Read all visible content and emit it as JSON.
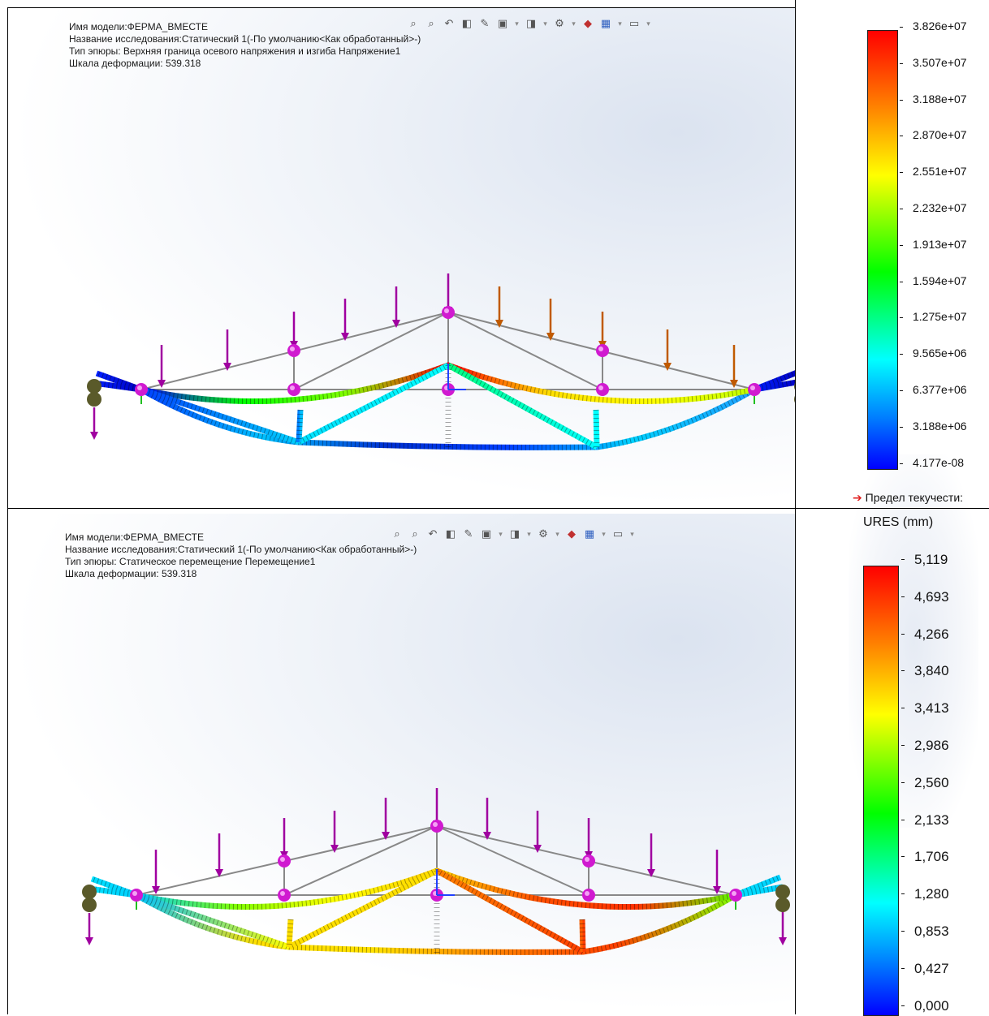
{
  "panels": [
    {
      "info": {
        "model_name": "Имя модели:ФЕРМА_ВМЕСТЕ",
        "study_name": "Название исследования:Статический 1(-По умолчанию<Как обработанный>-)",
        "plot_type": "Тип эпюры: Верхняя граница осевого напряжения и изгиба Напряжение1",
        "deformation_scale": "Шкала деформации: 539.318"
      }
    },
    {
      "info": {
        "model_name": "Имя модели:ФЕРМА_ВМЕСТЕ",
        "study_name": "Название исследования:Статический 1(-По умолчанию<Как обработанный>-)",
        "plot_type": "Тип эпюры: Статическое перемещение Перемещение1",
        "deformation_scale": "Шкала деформации: 539.318"
      }
    }
  ],
  "toolbar_icons": [
    "zoom-to-fit-icon",
    "zoom-to-area-icon",
    "previous-view-icon",
    "section-view-icon",
    "view-orientation-icon",
    "display-style-icon",
    "hide-show-icon",
    "edit-appearance-icon",
    "apply-scene-icon",
    "view-settings-icon"
  ],
  "legend_stress": {
    "values": [
      "3.826e+07",
      "3.507e+07",
      "3.188e+07",
      "2.870e+07",
      "2.551e+07",
      "2.232e+07",
      "1.913e+07",
      "1.594e+07",
      "1.275e+07",
      "9.565e+06",
      "6.377e+06",
      "3.188e+06",
      "4.177e-08"
    ],
    "yield_label": "Предел текучести:"
  },
  "legend_disp": {
    "title": "URES (mm)",
    "values": [
      "5,119",
      "4,693",
      "4,266",
      "3,840",
      "3,413",
      "2,986",
      "2,560",
      "2,133",
      "1,706",
      "1,280",
      "0,853",
      "0,427",
      "0,000"
    ]
  },
  "colors": {
    "load_arrow": "#a000a0",
    "load_arrow_alt": "#c05a00",
    "node": "#d01ad0",
    "fixture": "#5a5a2a",
    "undeformed": "#888888"
  }
}
